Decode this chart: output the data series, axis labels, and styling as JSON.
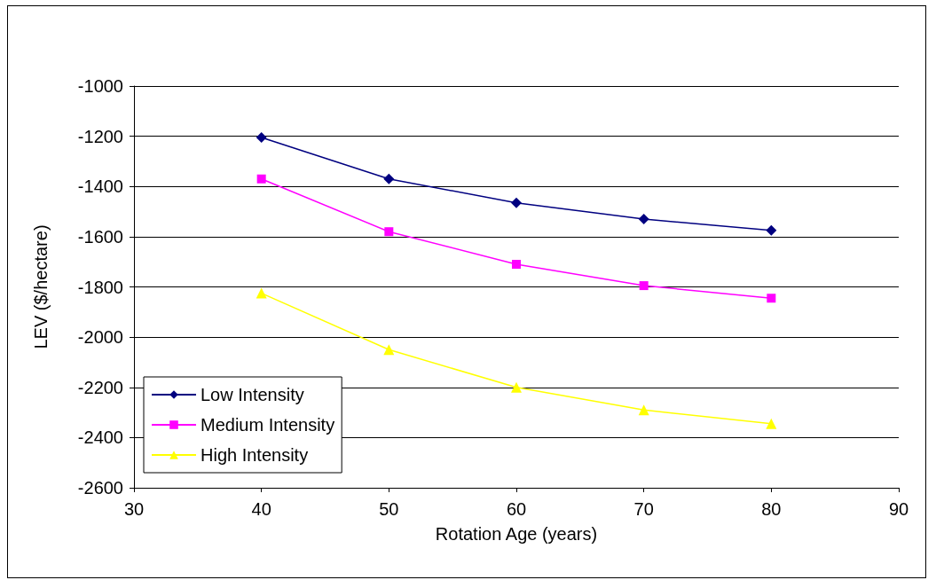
{
  "chart_data": {
    "type": "line",
    "xlabel": "Rotation Age (years)",
    "ylabel": "LEV ($/hectare)",
    "x": [
      40,
      50,
      60,
      70,
      80
    ],
    "series": [
      {
        "name": "Low Intensity",
        "color": "#000080",
        "marker": "diamond",
        "values": [
          -1205,
          -1370,
          -1465,
          -1530,
          -1575
        ]
      },
      {
        "name": "Medium Intensity",
        "color": "#ff00ff",
        "marker": "square",
        "values": [
          -1370,
          -1580,
          -1710,
          -1795,
          -1845
        ]
      },
      {
        "name": "High Intensity",
        "color": "#ffff00",
        "marker": "triangle",
        "values": [
          -1825,
          -2050,
          -2200,
          -2290,
          -2345
        ]
      }
    ],
    "xlim": [
      30,
      90
    ],
    "xticks": [
      30,
      40,
      50,
      60,
      70,
      80,
      90
    ],
    "ylim": [
      -2600,
      -1000
    ],
    "yticks": [
      -2600,
      -2400,
      -2200,
      -2000,
      -1800,
      -1600,
      -1400,
      -1200,
      -1000
    ],
    "grid": "y",
    "legend": "bottom left",
    "line_style": "solid"
  }
}
